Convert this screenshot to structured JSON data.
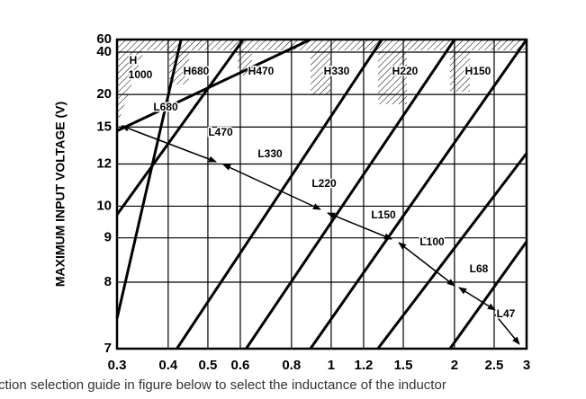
{
  "chart_data": {
    "type": "line",
    "ylabel": "MAXIMUM INPUT VOLTAGE (V)",
    "caption": "ction selection guide in figure below to select the inductance of the inductor",
    "log_x": true,
    "grid": true,
    "color": "#000000",
    "xlim": [
      0.3,
      3
    ],
    "xticks": [
      0.3,
      0.4,
      0.5,
      0.6,
      0.8,
      1,
      1.2,
      1.5,
      2,
      2.5,
      3
    ],
    "ylim": [
      7,
      60
    ],
    "yticks": [
      7,
      8,
      9,
      10,
      12,
      15,
      20,
      40,
      60
    ],
    "series": [
      {
        "x": [
          0.3,
          0.43
        ],
        "values": [
          7.4,
          60
        ]
      },
      {
        "x": [
          0.3,
          0.61
        ],
        "values": [
          9.7,
          60
        ]
      },
      {
        "x": [
          0.3,
          0.89
        ],
        "values": [
          14.6,
          60
        ]
      },
      {
        "x": [
          0.42,
          1.33
        ],
        "values": [
          7,
          60
        ]
      },
      {
        "x": [
          0.62,
          2.0
        ],
        "values": [
          7,
          60
        ]
      },
      {
        "x": [
          0.89,
          3
        ],
        "values": [
          7,
          60
        ]
      },
      {
        "x": [
          1.3,
          3
        ],
        "values": [
          7,
          12.7
        ]
      },
      {
        "x": [
          1.95,
          3
        ],
        "values": [
          7,
          8.9
        ]
      }
    ],
    "annotations": [
      "H",
      "1000",
      "H680",
      "H470",
      "H330",
      "H220",
      "H150",
      "L680",
      "L470",
      "L330",
      "L220",
      "L150",
      "L100",
      "L68",
      "L47"
    ]
  }
}
